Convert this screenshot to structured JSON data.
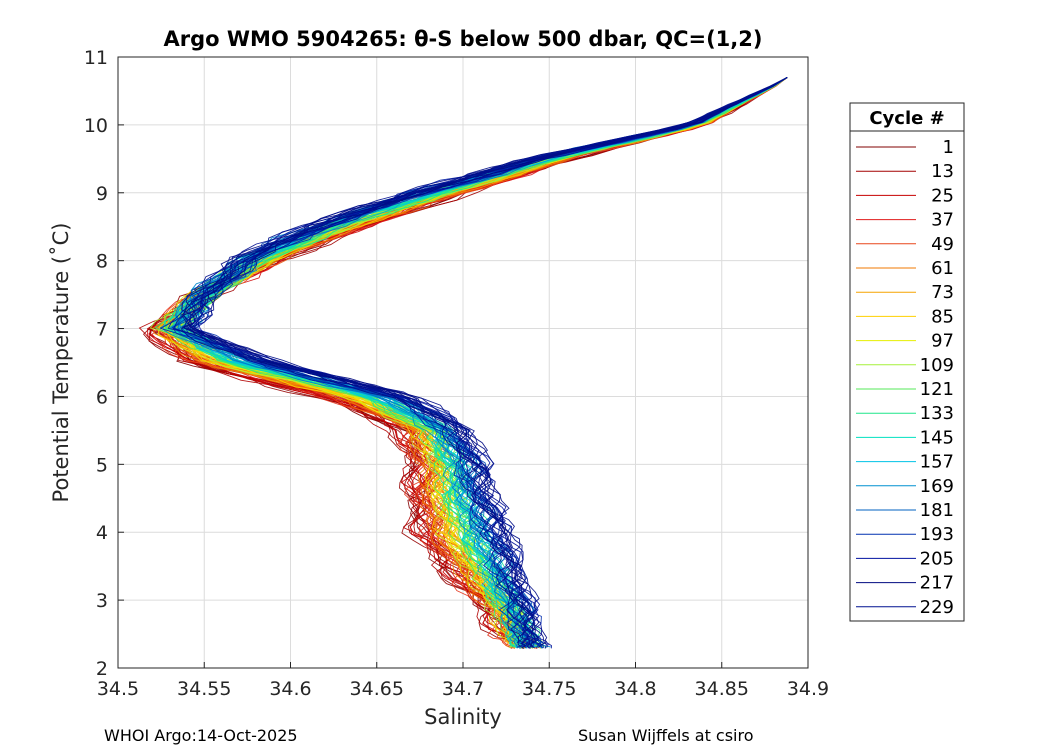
{
  "chart_data": {
    "type": "line",
    "title": "Argo WMO 5904265: θ-S below 500 dbar,  QC=(1,2)",
    "xlabel": "Salinity",
    "ylabel": "Potential Temperature (˚C)",
    "xlim": [
      34.5,
      34.9
    ],
    "ylim": [
      2,
      11
    ],
    "xticks": [
      "34.5",
      "34.55",
      "34.6",
      "34.65",
      "34.7",
      "34.75",
      "34.8",
      "34.85",
      "34.9"
    ],
    "yticks": [
      "2",
      "3",
      "4",
      "5",
      "6",
      "7",
      "8",
      "9",
      "10",
      "11"
    ],
    "grid": true,
    "legend": {
      "title": "Cycle #",
      "placement": "right-outside",
      "entries": [
        {
          "label": "1",
          "color": "#800000"
        },
        {
          "label": "13",
          "color": "#a30000"
        },
        {
          "label": "25",
          "color": "#c60000"
        },
        {
          "label": "37",
          "color": "#e01b1b"
        },
        {
          "label": "49",
          "color": "#e8471a"
        },
        {
          "label": "61",
          "color": "#f07a00"
        },
        {
          "label": "73",
          "color": "#f5a400"
        },
        {
          "label": "85",
          "color": "#ffd000"
        },
        {
          "label": "97",
          "color": "#e6ef00"
        },
        {
          "label": "109",
          "color": "#a6f03a"
        },
        {
          "label": "121",
          "color": "#55e85a"
        },
        {
          "label": "133",
          "color": "#1ee68a"
        },
        {
          "label": "145",
          "color": "#00e0c0"
        },
        {
          "label": "157",
          "color": "#00c2e6"
        },
        {
          "label": "169",
          "color": "#0090d0"
        },
        {
          "label": "181",
          "color": "#0060c0"
        },
        {
          "label": "193",
          "color": "#0030b0"
        },
        {
          "label": "205",
          "color": "#0010a0"
        },
        {
          "label": "217",
          "color": "#000a80"
        },
        {
          "label": "229",
          "color": "#001090"
        }
      ]
    },
    "series_envelope": {
      "description_points_theta": [
        10.7,
        10.0,
        9.5,
        9.0,
        8.5,
        8.0,
        7.5,
        7.0,
        6.5,
        6.0,
        5.5,
        5.0,
        4.5,
        4.0,
        3.5,
        3.0,
        2.5,
        2.3
      ],
      "early_cycles_salinity": [
        34.89,
        34.84,
        34.76,
        34.7,
        34.64,
        34.59,
        34.55,
        34.52,
        34.54,
        34.62,
        34.665,
        34.672,
        34.672,
        34.675,
        34.69,
        34.71,
        34.725,
        34.735
      ],
      "late_cycles_salinity": [
        34.89,
        34.83,
        34.74,
        34.67,
        34.61,
        34.57,
        34.55,
        34.54,
        34.59,
        34.67,
        34.7,
        34.71,
        34.715,
        34.725,
        34.73,
        34.735,
        34.74,
        34.74
      ]
    }
  },
  "footer": {
    "left": "WHOI Argo:14-Oct-2025",
    "right": "Susan Wijffels at csiro"
  }
}
